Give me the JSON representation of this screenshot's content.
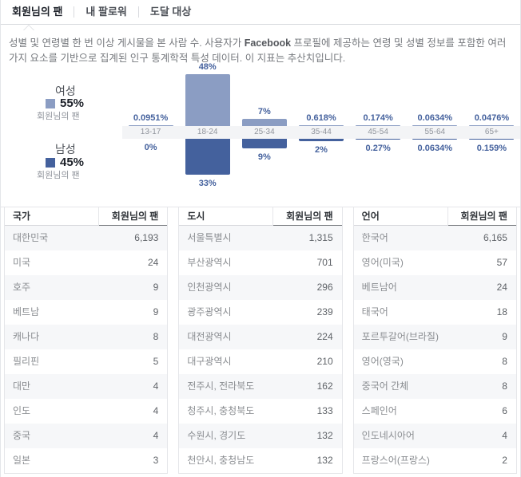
{
  "tabs": [
    {
      "label": "회원님의 팬",
      "active": true
    },
    {
      "label": "내 팔로워",
      "active": false
    },
    {
      "label": "도달 대상",
      "active": false
    }
  ],
  "description": {
    "part1": "성별 및 연령별 한 번 이상 게시물을 본 사람 수. 사용자가 ",
    "bold": "Facebook",
    "part2": " 프로필에 제공하는 연령 및 성별 정보를 포함한 여러 가지 요소를 기반으로 집계된 인구 통계학적 특성 데이터. 이 지표는 추산치입니다."
  },
  "legend": {
    "female": {
      "label": "여성",
      "pct": "55%",
      "sub": "회원님의 팬",
      "color": "#8b9dc3"
    },
    "male": {
      "label": "남성",
      "pct": "45%",
      "sub": "회원님의 팬",
      "color": "#44619d"
    }
  },
  "chart_data": {
    "type": "bar",
    "title": "성별 및 연령별 팬 분포",
    "categories": [
      "13-17",
      "18-24",
      "25-34",
      "35-44",
      "45-54",
      "55-64",
      "65+"
    ],
    "series": [
      {
        "name": "여성",
        "color": "#8b9dc3",
        "values": [
          0.0951,
          48,
          7,
          0.618,
          0.174,
          0.0634,
          0.0476
        ],
        "labels": [
          "0.0951%",
          "48%",
          "7%",
          "0.618%",
          "0.174%",
          "0.0634%",
          "0.0476%"
        ]
      },
      {
        "name": "남성",
        "color": "#44619d",
        "values": [
          0,
          33,
          9,
          2,
          0.27,
          0.0634,
          0.159
        ],
        "labels": [
          "0%",
          "33%",
          "9%",
          "2%",
          "0.27%",
          "0.0634%",
          "0.159%"
        ]
      }
    ],
    "label_color": "#44619d",
    "axis_band_color": "#f3f4f6",
    "ylim": [
      0,
      48
    ]
  },
  "tables": [
    {
      "name_header": "국가",
      "value_header": "회원님의 팬",
      "rows": [
        [
          "대한민국",
          "6,193"
        ],
        [
          "미국",
          "24"
        ],
        [
          "호주",
          "9"
        ],
        [
          "베트남",
          "9"
        ],
        [
          "캐나다",
          "8"
        ],
        [
          "필리핀",
          "5"
        ],
        [
          "대만",
          "4"
        ],
        [
          "인도",
          "4"
        ],
        [
          "중국",
          "4"
        ],
        [
          "일본",
          "3"
        ]
      ]
    },
    {
      "name_header": "도시",
      "value_header": "회원님의 팬",
      "rows": [
        [
          "서울특별시",
          "1,315"
        ],
        [
          "부산광역시",
          "701"
        ],
        [
          "인천광역시",
          "296"
        ],
        [
          "광주광역시",
          "239"
        ],
        [
          "대전광역시",
          "224"
        ],
        [
          "대구광역시",
          "210"
        ],
        [
          "전주시, 전라북도",
          "162"
        ],
        [
          "청주시, 충청북도",
          "133"
        ],
        [
          "수원시, 경기도",
          "132"
        ],
        [
          "천안시, 충청남도",
          "132"
        ]
      ]
    },
    {
      "name_header": "언어",
      "value_header": "회원님의 팬",
      "rows": [
        [
          "한국어",
          "6,165"
        ],
        [
          "영어(미국)",
          "57"
        ],
        [
          "베트남어",
          "24"
        ],
        [
          "태국어",
          "18"
        ],
        [
          "포르투갈어(브라질)",
          "9"
        ],
        [
          "영어(영국)",
          "8"
        ],
        [
          "중국어 간체",
          "8"
        ],
        [
          "스페인어",
          "6"
        ],
        [
          "인도네시아어",
          "4"
        ],
        [
          "프랑스어(프랑스)",
          "2"
        ]
      ]
    }
  ]
}
